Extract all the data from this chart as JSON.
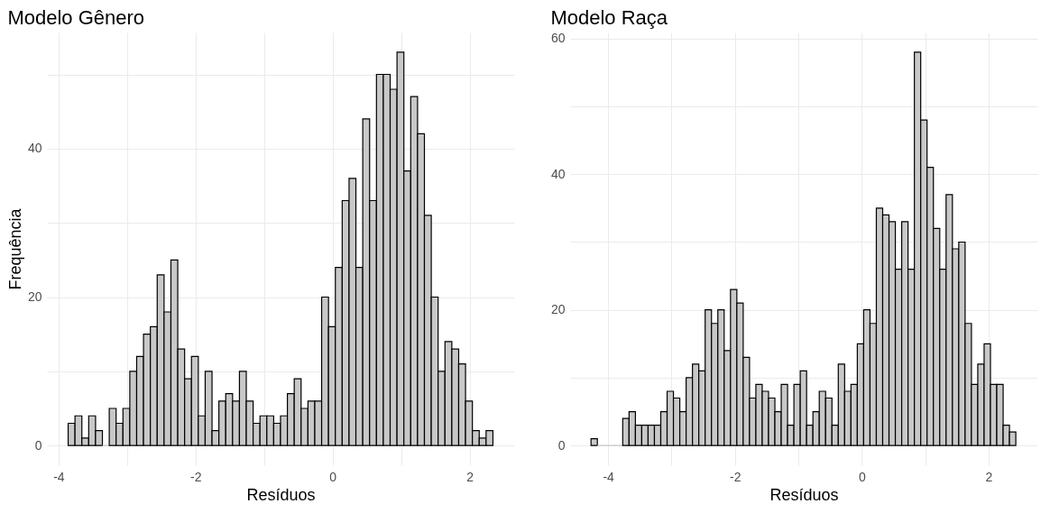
{
  "chart_data": [
    {
      "type": "histogram",
      "title": "Modelo Gênero",
      "xlabel": "Resíduos",
      "ylabel": "Frequência",
      "color": "#c8c8c8",
      "bins": [
        -3.86,
        -3.76,
        -3.66,
        -3.56,
        -3.46,
        -3.36,
        -3.26,
        -3.16,
        -3.06,
        -2.96,
        -2.86,
        -2.76,
        -2.66,
        -2.56,
        -2.46,
        -2.36,
        -2.26,
        -2.16,
        -2.06,
        -1.96,
        -1.86,
        -1.76,
        -1.66,
        -1.56,
        -1.46,
        -1.36,
        -1.26,
        -1.16,
        -1.06,
        -0.96,
        -0.86,
        -0.76,
        -0.66,
        -0.56,
        -0.46,
        -0.36,
        -0.26,
        -0.16,
        -0.06,
        0.04,
        0.14,
        0.24,
        0.34,
        0.44,
        0.54,
        0.64,
        0.74,
        0.84,
        0.94,
        1.04,
        1.14,
        1.24,
        1.34,
        1.44,
        1.54,
        1.64,
        1.74,
        1.84,
        1.94,
        2.04,
        2.14,
        2.24,
        2.34
      ],
      "values": [
        3,
        4,
        1,
        4,
        2,
        0,
        5,
        3,
        5,
        10,
        12,
        15,
        16,
        23,
        18,
        25,
        13,
        9,
        12,
        4,
        10,
        2,
        6,
        7,
        6,
        10,
        6,
        3,
        4,
        4,
        3,
        4,
        7,
        9,
        5,
        6,
        6,
        20,
        16,
        24,
        33,
        36,
        24,
        44,
        33,
        50,
        50,
        48,
        53,
        37,
        47,
        42,
        31,
        20,
        10,
        14,
        13,
        11,
        6,
        2,
        1,
        2
      ],
      "xlim": [
        -4.17,
        2.65
      ],
      "ylim": [
        -2.65,
        55.65
      ],
      "xticks": [
        -4,
        {
          "value": -3,
          "label": null
        },
        -2,
        {
          "value": -1,
          "label": null
        },
        0,
        {
          "value": 1,
          "label": null
        },
        2
      ],
      "yticks": [
        0,
        {
          "value": 10,
          "label": null
        },
        20,
        {
          "value": 30,
          "label": null
        },
        40,
        {
          "value": 50,
          "label": null
        }
      ],
      "grid": true
    },
    {
      "type": "histogram",
      "title": "Modelo Raça",
      "xlabel": "Resíduos",
      "color": "#c8c8c8",
      "bins": [
        -4.27,
        -4.17,
        -4.07,
        -3.97,
        -3.87,
        -3.77,
        -3.67,
        -3.57,
        -3.47,
        -3.37,
        -3.27,
        -3.17,
        -3.07,
        -2.97,
        -2.87,
        -2.77,
        -2.67,
        -2.57,
        -2.47,
        -2.37,
        -2.27,
        -2.17,
        -2.07,
        -1.97,
        -1.87,
        -1.77,
        -1.67,
        -1.57,
        -1.47,
        -1.37,
        -1.27,
        -1.17,
        -1.07,
        -0.97,
        -0.87,
        -0.77,
        -0.67,
        -0.57,
        -0.47,
        -0.37,
        -0.27,
        -0.17,
        -0.07,
        0.03,
        0.13,
        0.23,
        0.33,
        0.43,
        0.53,
        0.63,
        0.73,
        0.83,
        0.93,
        1.03,
        1.13,
        1.23,
        1.33,
        1.43,
        1.53,
        1.63,
        1.73,
        1.83,
        1.93,
        2.03,
        2.13,
        2.23,
        2.33,
        2.43
      ],
      "values": [
        1,
        0,
        0,
        0,
        0,
        4,
        5,
        3,
        3,
        3,
        3,
        5,
        8,
        7,
        5,
        10,
        12,
        11,
        20,
        18,
        20,
        14,
        23,
        21,
        13,
        7,
        9,
        8,
        7,
        5,
        9,
        3,
        9,
        11,
        3,
        5,
        8,
        7,
        3,
        12,
        8,
        9,
        15,
        20,
        18,
        35,
        34,
        33,
        26,
        33,
        26,
        58,
        48,
        41,
        32,
        26,
        37,
        29,
        30,
        18,
        9,
        12,
        15,
        9,
        9,
        3,
        2
      ],
      "xlim": [
        -4.6,
        2.77
      ],
      "ylim": [
        -2.9,
        60.9
      ],
      "xticks": [
        -4,
        {
          "value": -3,
          "label": null
        },
        -2,
        {
          "value": -1,
          "label": null
        },
        0,
        {
          "value": 1,
          "label": null
        },
        2
      ],
      "yticks": [
        0,
        {
          "value": 10,
          "label": null
        },
        20,
        {
          "value": 30,
          "label": null
        },
        40,
        {
          "value": 50,
          "label": null
        },
        60
      ],
      "grid": true
    }
  ]
}
